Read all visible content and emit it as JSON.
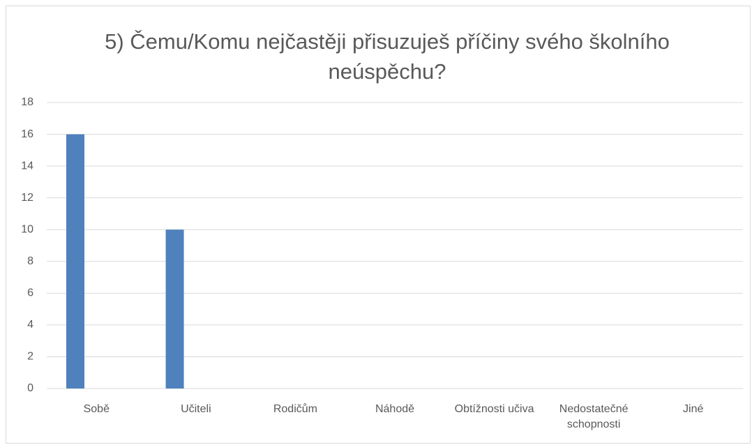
{
  "chart_data": {
    "type": "bar",
    "title": "5) Čemu/Komu nejčastěji přisuzuješ příčiny svého školního neúspěchu?",
    "categories": [
      "Sobě",
      "Učiteli",
      "Rodičům",
      "Náhodě",
      "Obtížnosti učiva",
      "Nedostatečné schopnosti",
      "Jiné"
    ],
    "values": [
      16,
      10,
      0,
      0,
      0,
      0,
      0
    ],
    "color": "#4f81bd",
    "ylim": [
      0,
      18
    ],
    "yticks": [
      0,
      2,
      4,
      6,
      8,
      10,
      12,
      14,
      16,
      18
    ],
    "grid": true
  }
}
